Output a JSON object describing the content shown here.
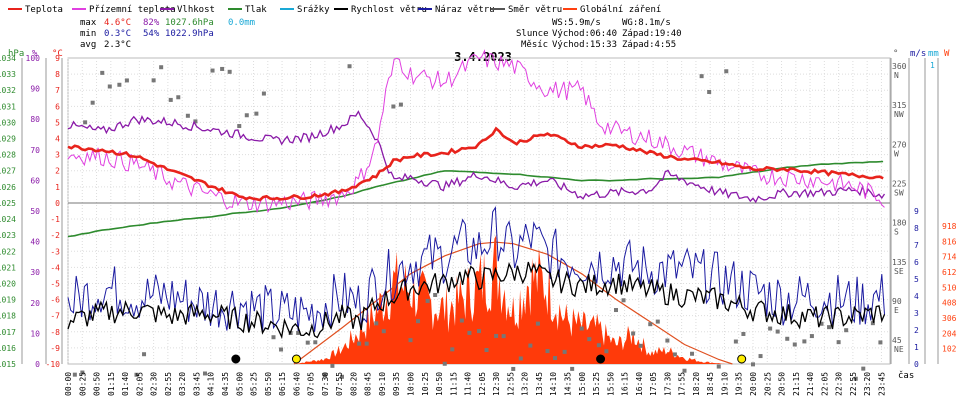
{
  "chart_data": {
    "type": "line",
    "title": "3.4.2023",
    "legend": [
      {
        "label": "Teplota",
        "color": "#e8231c"
      },
      {
        "label": "Přízemní teplota",
        "color": "#e040e0"
      },
      {
        "label": "Vlhkost",
        "color": "#8a1aa8"
      },
      {
        "label": "Tlak",
        "color": "#2e8b2e"
      },
      {
        "label": "Srážky",
        "color": "#1aa9d6"
      },
      {
        "label": "Rychlost větru",
        "color": "#000000"
      },
      {
        "label": "Náraz větru",
        "color": "#1a1aa0"
      },
      {
        "label": "Směr větru",
        "color": "#555555"
      },
      {
        "label": "Globální záření",
        "color": "#ff4010"
      }
    ],
    "stats": {
      "rows": [
        {
          "label": "max",
          "temp": "4.6°C",
          "hum": "82%",
          "press": "1027.6hPa",
          "rain": "0.0mm"
        },
        {
          "label": "min",
          "temp": "0.3°C",
          "hum": "54%",
          "press": "1022.9hPa",
          "rain": ""
        },
        {
          "label": "avg",
          "temp": "2.3°C",
          "hum": "",
          "press": "",
          "rain": ""
        }
      ],
      "ws": "WS:5.9m/s",
      "wg": "WG:8.1m/s",
      "sun_label": "Slunce",
      "moon_label": "Měsíc",
      "sunrise": "Východ:06:40",
      "sunset": "Západ:19:40",
      "moonrise": "Východ:15:33",
      "moonset": "Západ:4:55"
    },
    "axes": {
      "left": [
        {
          "unit": "hPa",
          "color": "#2e8b2e",
          "min": 1015,
          "max": 1034,
          "step": 1
        },
        {
          "unit": "%",
          "color": "#8a1aa8",
          "min": 0,
          "max": 100,
          "step": 10
        },
        {
          "unit": "°C",
          "color": "#e8231c",
          "min": -10,
          "max": 9,
          "step": 1
        }
      ],
      "right": [
        {
          "unit": "°",
          "color": "#555555",
          "ticks": [
            "360",
            "315",
            "270",
            "225",
            "180",
            "135",
            "90",
            "45"
          ],
          "subticks": [
            "N",
            "NW",
            "W",
            "SW",
            "S",
            "SE",
            "E",
            "NE"
          ]
        },
        {
          "unit": "m/s",
          "color": "#1a1aa0",
          "min": 0,
          "max": 9,
          "step": 1
        },
        {
          "unit": "mm",
          "color": "#1aa9d6",
          "ticks": [
            "1"
          ]
        },
        {
          "unit": "W",
          "color": "#ff4010",
          "ticks": [
            "918",
            "816",
            "714",
            "612",
            "510",
            "408",
            "306",
            "204",
            "102"
          ]
        }
      ],
      "x_label": "čas",
      "x_ticks": [
        "00:00",
        "00:25",
        "00:50",
        "01:15",
        "01:40",
        "02:05",
        "02:30",
        "02:55",
        "03:20",
        "03:45",
        "04:10",
        "04:35",
        "05:00",
        "05:25",
        "05:50",
        "06:15",
        "06:40",
        "07:05",
        "07:30",
        "07:55",
        "08:20",
        "08:45",
        "09:10",
        "09:35",
        "10:00",
        "10:25",
        "10:50",
        "11:15",
        "11:40",
        "12:05",
        "12:30",
        "12:55",
        "13:20",
        "13:45",
        "14:10",
        "14:35",
        "15:00",
        "15:25",
        "15:50",
        "16:15",
        "16:40",
        "17:05",
        "17:30",
        "17:55",
        "18:20",
        "18:45",
        "19:10",
        "19:35",
        "20:00",
        "20:25",
        "20:50",
        "21:15",
        "21:40",
        "22:05",
        "22:30",
        "22:55",
        "23:20",
        "23:45"
      ]
    },
    "series": {
      "temperature_C": {
        "hours": [
          0,
          1,
          2,
          3,
          4,
          5,
          5.5,
          6,
          7,
          8,
          9,
          9.5,
          10,
          11,
          12,
          12.5,
          13,
          14,
          15,
          16,
          17,
          18,
          19,
          20,
          21,
          22,
          23,
          23.9
        ],
        "values": [
          3.5,
          3.3,
          2.9,
          2.0,
          1.2,
          0.4,
          0.3,
          0.3,
          0.4,
          0.7,
          1.7,
          2.6,
          2.9,
          3.1,
          3.6,
          4.6,
          3.7,
          4.3,
          3.5,
          3.6,
          3.1,
          2.7,
          2.5,
          2.1,
          2.1,
          1.9,
          1.7,
          1.6
        ]
      },
      "ground_temperature_C": {
        "hours": [
          0,
          1,
          2,
          3,
          4,
          4.5,
          5,
          6,
          7,
          8,
          8.5,
          9,
          9.3,
          9.6,
          10,
          11,
          12,
          13,
          14,
          15,
          15.5,
          16,
          17,
          18,
          19,
          20,
          21,
          22,
          23,
          23.9
        ],
        "values": [
          3.0,
          2.9,
          2.4,
          1.4,
          0.6,
          0.3,
          0.0,
          0.0,
          0.1,
          0.5,
          1.4,
          3.5,
          7.0,
          9.0,
          8.0,
          7.5,
          9.0,
          8.5,
          7.0,
          7.0,
          5.0,
          4.5,
          4.0,
          3.2,
          2.5,
          1.8,
          1.6,
          1.4,
          1.0,
          0.2
        ]
      },
      "humidity_pct": {
        "hours": [
          0,
          1,
          2,
          3,
          4,
          5,
          6,
          7,
          8,
          8.5,
          9,
          9.5,
          10,
          11,
          12,
          13,
          14,
          15,
          16,
          17,
          17.5,
          18,
          19,
          20,
          21,
          22,
          23,
          23.9
        ],
        "values": [
          78,
          76,
          80,
          79,
          77,
          75,
          73,
          74,
          78,
          82,
          74,
          60,
          61,
          58,
          62,
          58,
          60,
          55,
          56,
          57,
          62,
          60,
          56,
          54,
          56,
          56,
          57,
          55
        ]
      },
      "pressure_hPa": {
        "hours": [
          0,
          1,
          2,
          3,
          4,
          5,
          6,
          7,
          8,
          9,
          10,
          11,
          12,
          13,
          14,
          15,
          16,
          17,
          18,
          19,
          20,
          21,
          22,
          23,
          23.9
        ],
        "values": [
          1022.9,
          1023.3,
          1023.6,
          1023.9,
          1024.1,
          1024.4,
          1024.6,
          1025.0,
          1025.4,
          1026.0,
          1026.5,
          1027.0,
          1026.9,
          1026.8,
          1026.6,
          1026.4,
          1026.4,
          1026.5,
          1026.5,
          1026.6,
          1026.9,
          1027.2,
          1027.4,
          1027.5,
          1027.6
        ]
      },
      "wind_speed_ms": {
        "hours": [
          0,
          1,
          2,
          3,
          4,
          5,
          6,
          7,
          8,
          8.5,
          9,
          10,
          11,
          11.5,
          12,
          13,
          13.5,
          14,
          15,
          16,
          17,
          18,
          19,
          20,
          21,
          22,
          23,
          23.9
        ],
        "values": [
          2.5,
          3.0,
          3.2,
          2.8,
          3.0,
          2.6,
          2.3,
          2.0,
          2.8,
          2.5,
          3.5,
          4.5,
          4.8,
          5.2,
          5.0,
          5.4,
          5.5,
          5.0,
          4.6,
          4.8,
          4.3,
          4.0,
          3.8,
          3.2,
          2.9,
          2.7,
          2.8,
          3.1
        ]
      },
      "wind_gust_ms": {
        "hours": [
          0,
          1,
          2,
          3,
          4,
          5,
          6,
          7,
          8,
          8.5,
          9,
          10,
          11,
          11.5,
          12,
          12.5,
          13,
          13.5,
          14,
          15,
          16,
          17,
          18,
          19,
          20,
          21,
          22,
          23,
          23.9
        ],
        "values": [
          3.5,
          4.5,
          4.0,
          4.0,
          3.5,
          3.6,
          3.0,
          3.0,
          4.0,
          3.5,
          4.7,
          6.0,
          6.3,
          7.0,
          6.8,
          7.8,
          6.5,
          7.5,
          6.5,
          6.0,
          6.0,
          5.5,
          5.5,
          5.0,
          4.3,
          3.8,
          4.0,
          3.6,
          4.0
        ]
      },
      "solar_W": {
        "hours": [
          6.6,
          7.5,
          8,
          8.5,
          9,
          9.5,
          10,
          10.5,
          11,
          11.5,
          12,
          12.5,
          13,
          13.5,
          14,
          14.5,
          15,
          15.5,
          16,
          16.5,
          17,
          17.5,
          18,
          18.5,
          19.2
        ],
        "values": [
          0,
          40,
          120,
          260,
          420,
          650,
          600,
          500,
          440,
          520,
          650,
          790,
          430,
          700,
          640,
          360,
          300,
          280,
          150,
          240,
          90,
          110,
          50,
          20,
          0
        ]
      },
      "theoretical_solar_W": {
        "hours": [
          6.6,
          8,
          9,
          10,
          11,
          12,
          12.5,
          13,
          14,
          15,
          16,
          17,
          18,
          19,
          19.4
        ],
        "values": [
          0,
          240,
          420,
          600,
          720,
          800,
          810,
          800,
          730,
          600,
          430,
          280,
          130,
          30,
          0
        ]
      }
    },
    "scatter_series_note": "",
    "wind_direction_deg": {
      "hours": [
        0.2,
        0.5,
        1.0,
        1.5,
        2.0,
        2.5,
        3.0,
        3.5,
        4.0,
        4.5,
        5.0,
        5.5,
        6.0,
        6.5,
        7.0,
        7.5,
        8.0,
        8.5,
        9.0,
        9.5,
        10.0,
        10.5,
        11.0,
        11.5,
        12.0,
        12.5,
        13.0,
        13.5,
        14.0,
        14.5,
        15.0,
        15.5,
        16.0,
        16.5,
        17.0,
        17.5,
        18.0,
        18.5,
        19.0,
        19.5,
        20.0,
        20.5,
        21.0,
        21.5,
        22.0,
        22.5,
        23.0,
        23.5
      ],
      "values": [
        350,
        300,
        340,
        355,
        20,
        340,
        330,
        310,
        350,
        345,
        300,
        320,
        30,
        60,
        40,
        20,
        350,
        40,
        60,
        330,
        50,
        80,
        20,
        70,
        40,
        60,
        30,
        45,
        20,
        30,
        60,
        40,
        90,
        50,
        60,
        45,
        30,
        350,
        10,
        60,
        20,
        40,
        60,
        30,
        50,
        40,
        20,
        60
      ]
    },
    "markers": [
      {
        "label": "moonset",
        "hour": 4.9,
        "color": "#000000"
      },
      {
        "label": "sunrise",
        "hour": 6.67,
        "color": "#ffee00"
      },
      {
        "label": "moonrise",
        "hour": 15.55,
        "color": "#000000"
      },
      {
        "label": "sunset",
        "hour": 19.67,
        "color": "#ffee00"
      }
    ]
  }
}
